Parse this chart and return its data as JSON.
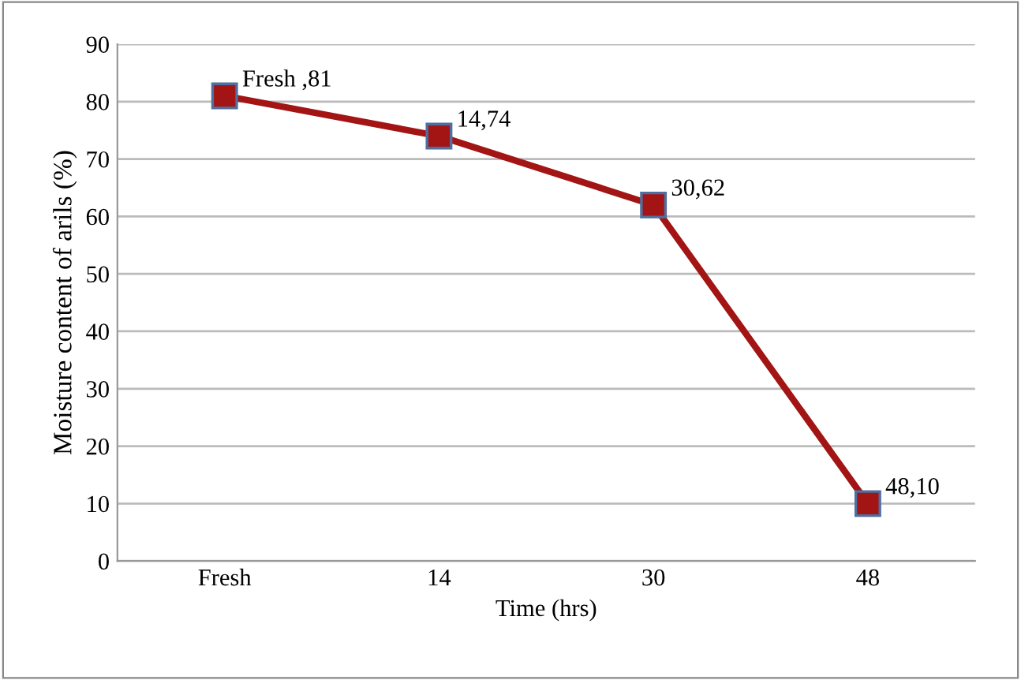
{
  "chart_data": {
    "type": "line",
    "xlabel": "Time (hrs)",
    "ylabel": "Moisture content of arils (%)",
    "categories": [
      "Fresh",
      "14",
      "30",
      "48"
    ],
    "series": [
      {
        "color": "#a31515",
        "values": [
          81,
          74,
          62,
          10
        ]
      }
    ],
    "annotations": [
      {
        "text": "Fresh ,81",
        "x": "Fresh",
        "y": 81
      },
      {
        "text": "14,74",
        "x": "14",
        "y": 74
      },
      {
        "text": "30,62",
        "x": "30",
        "y": 62
      },
      {
        "text": "48,10",
        "x": "48",
        "y": 10
      }
    ],
    "ylim": [
      0,
      90
    ],
    "yticks": [
      0,
      10,
      20,
      30,
      40,
      50,
      60,
      70,
      80,
      90
    ],
    "grid": "y",
    "marker": "square",
    "line_style": "solid",
    "legend": false
  }
}
